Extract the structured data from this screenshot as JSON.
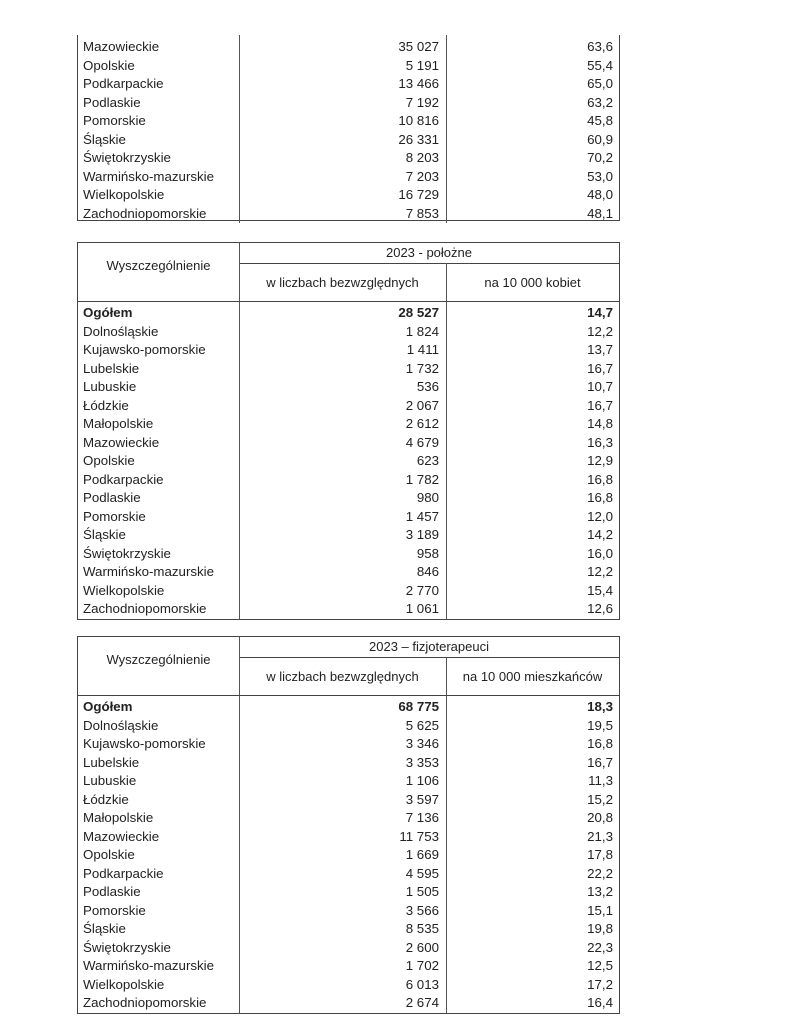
{
  "tables": [
    {
      "continuation": true,
      "rows": [
        [
          "Mazowieckie",
          "35 027",
          "63,6"
        ],
        [
          "Opolskie",
          "5 191",
          "55,4"
        ],
        [
          "Podkarpackie",
          "13 466",
          "65,0"
        ],
        [
          "Podlaskie",
          "7 192",
          "63,2"
        ],
        [
          "Pomorskie",
          "10 816",
          "45,8"
        ],
        [
          "Śląskie",
          "26 331",
          "60,9"
        ],
        [
          "Świętokrzyskie",
          "8 203",
          "70,2"
        ],
        [
          "Warmińsko-mazurskie",
          "7 203",
          "53,0"
        ],
        [
          "Wielkopolskie",
          "16 729",
          "48,0"
        ],
        [
          "Zachodniopomorskie",
          "7 853",
          "48,1"
        ]
      ]
    },
    {
      "stub_header": "Wyszczególnienie",
      "group_header": "2023 - położne",
      "col1_header": "w liczbach bezwzględnych",
      "col2_header": "na 10 000 kobiet",
      "total": [
        "Ogółem",
        "28 527",
        "14,7"
      ],
      "rows": [
        [
          "Dolnośląskie",
          "1 824",
          "12,2"
        ],
        [
          "Kujawsko-pomorskie",
          "1 411",
          "13,7"
        ],
        [
          "Lubelskie",
          "1 732",
          "16,7"
        ],
        [
          "Lubuskie",
          "536",
          "10,7"
        ],
        [
          "Łódzkie",
          "2 067",
          "16,7"
        ],
        [
          "Małopolskie",
          "2 612",
          "14,8"
        ],
        [
          "Mazowieckie",
          "4 679",
          "16,3"
        ],
        [
          "Opolskie",
          "623",
          "12,9"
        ],
        [
          "Podkarpackie",
          "1 782",
          "16,8"
        ],
        [
          "Podlaskie",
          "980",
          "16,8"
        ],
        [
          "Pomorskie",
          "1 457",
          "12,0"
        ],
        [
          "Śląskie",
          "3 189",
          "14,2"
        ],
        [
          "Świętokrzyskie",
          "958",
          "16,0"
        ],
        [
          "Warmińsko-mazurskie",
          "846",
          "12,2"
        ],
        [
          "Wielkopolskie",
          "2 770",
          "15,4"
        ],
        [
          "Zachodniopomorskie",
          "1 061",
          "12,6"
        ]
      ]
    },
    {
      "stub_header": "Wyszczególnienie",
      "group_header": "2023 – fizjoterapeuci",
      "col1_header": "w liczbach bezwzględnych",
      "col2_header": "na 10 000 mieszkańców",
      "total": [
        "Ogółem",
        "68 775",
        "18,3"
      ],
      "rows": [
        [
          "Dolnośląskie",
          "5 625",
          "19,5"
        ],
        [
          "Kujawsko-pomorskie",
          "3 346",
          "16,8"
        ],
        [
          "Lubelskie",
          "3 353",
          "16,7"
        ],
        [
          "Lubuskie",
          "1 106",
          "11,3"
        ],
        [
          "Łódzkie",
          "3 597",
          "15,2"
        ],
        [
          "Małopolskie",
          "7 136",
          "20,8"
        ],
        [
          "Mazowieckie",
          "11 753",
          "21,3"
        ],
        [
          "Opolskie",
          "1 669",
          "17,8"
        ],
        [
          "Podkarpackie",
          "4 595",
          "22,2"
        ],
        [
          "Podlaskie",
          "1 505",
          "13,2"
        ],
        [
          "Pomorskie",
          "3 566",
          "15,1"
        ],
        [
          "Śląskie",
          "8 535",
          "19,8"
        ],
        [
          "Świętokrzyskie",
          "2 600",
          "22,3"
        ],
        [
          "Warmińsko-mazurskie",
          "1 702",
          "12,5"
        ],
        [
          "Wielkopolskie",
          "6 013",
          "17,2"
        ],
        [
          "Zachodniopomorskie",
          "2 674",
          "16,4"
        ]
      ]
    }
  ]
}
